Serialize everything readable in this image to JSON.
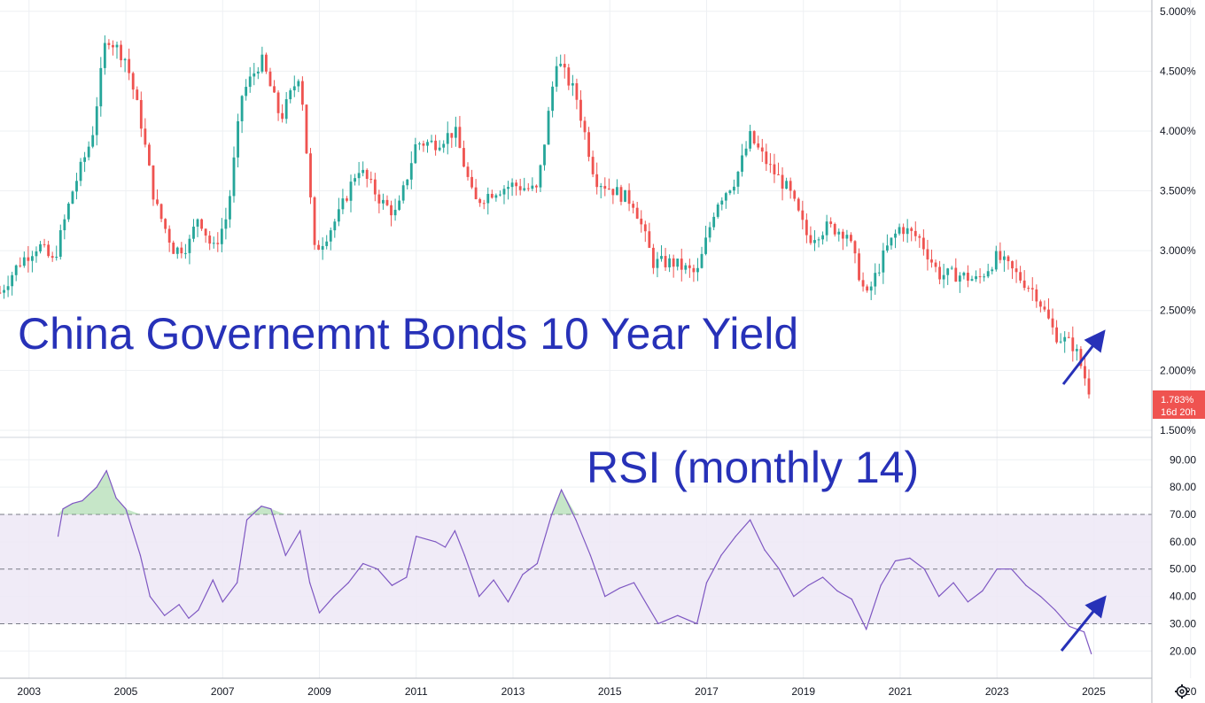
{
  "title": "China Governemnt Bonds 10 Year Yield",
  "rsi_title": "RSI (monthly 14)",
  "colors": {
    "up": "#26a69a",
    "down": "#ef5350",
    "rsi_line": "#7e57c2",
    "rsi_band": "#ede7f6",
    "arrow": "#2731b8",
    "grid": "#eef0f3",
    "last_price_bg": "#ef5350"
  },
  "last_price": {
    "value": "1.783%",
    "countdown": "16d 20h"
  },
  "settings_icon": "gear-icon",
  "chart_data": [
    {
      "type": "candlestick",
      "title": "China Governemnt Bonds 10 Year Yield",
      "x_ticks": [
        "2003",
        "2005",
        "2007",
        "2009",
        "2011",
        "2013",
        "2015",
        "2017",
        "2019",
        "2021",
        "2023",
        "2025",
        "20"
      ],
      "y_ticks": [
        "5.000%",
        "4.500%",
        "4.000%",
        "3.500%",
        "3.000%",
        "2.500%",
        "2.000%",
        "1.500%"
      ],
      "ylim": [
        1.47,
        5.05
      ],
      "xlim": [
        2002.4,
        2026.2
      ],
      "grid": true,
      "anchors": [
        [
          2002.4,
          2.65
        ],
        [
          2002.8,
          2.9
        ],
        [
          2003.2,
          3.05
        ],
        [
          2003.5,
          2.9
        ],
        [
          2003.9,
          3.5
        ],
        [
          2004.3,
          3.95
        ],
        [
          2004.6,
          4.8
        ],
        [
          2005.0,
          4.6
        ],
        [
          2005.3,
          4.1
        ],
        [
          2005.6,
          3.4
        ],
        [
          2006.0,
          3.0
        ],
        [
          2006.3,
          3.05
        ],
        [
          2006.5,
          3.3
        ],
        [
          2006.8,
          3.0
        ],
        [
          2007.1,
          3.3
        ],
        [
          2007.4,
          4.3
        ],
        [
          2007.8,
          4.6
        ],
        [
          2008.2,
          4.1
        ],
        [
          2008.6,
          4.5
        ],
        [
          2008.9,
          3.0
        ],
        [
          2009.1,
          3.1
        ],
        [
          2009.4,
          3.3
        ],
        [
          2009.8,
          3.7
        ],
        [
          2010.3,
          3.4
        ],
        [
          2010.6,
          3.3
        ],
        [
          2011.0,
          3.9
        ],
        [
          2011.4,
          3.9
        ],
        [
          2011.8,
          4.0
        ],
        [
          2012.2,
          3.4
        ],
        [
          2012.6,
          3.5
        ],
        [
          2013.0,
          3.55
        ],
        [
          2013.5,
          3.5
        ],
        [
          2013.9,
          4.6
        ],
        [
          2014.3,
          4.3
        ],
        [
          2014.7,
          3.6
        ],
        [
          2015.1,
          3.5
        ],
        [
          2015.5,
          3.4
        ],
        [
          2015.9,
          2.9
        ],
        [
          2016.3,
          2.9
        ],
        [
          2016.8,
          2.8
        ],
        [
          2017.2,
          3.4
        ],
        [
          2017.6,
          3.6
        ],
        [
          2017.9,
          3.95
        ],
        [
          2018.3,
          3.7
        ],
        [
          2018.7,
          3.5
        ],
        [
          2019.1,
          3.1
        ],
        [
          2019.5,
          3.2
        ],
        [
          2019.9,
          3.15
        ],
        [
          2020.3,
          2.6
        ],
        [
          2020.7,
          3.0
        ],
        [
          2021.0,
          3.2
        ],
        [
          2021.4,
          3.1
        ],
        [
          2021.8,
          2.8
        ],
        [
          2022.2,
          2.8
        ],
        [
          2022.6,
          2.75
        ],
        [
          2023.0,
          2.95
        ],
        [
          2023.4,
          2.8
        ],
        [
          2023.8,
          2.65
        ],
        [
          2024.2,
          2.3
        ],
        [
          2024.6,
          2.2
        ],
        [
          2024.95,
          1.783
        ]
      ],
      "last_value": "1.783%"
    },
    {
      "type": "line",
      "title": "RSI (monthly 14)",
      "y_ticks": [
        "90.00",
        "80.00",
        "70.00",
        "60.00",
        "50.00",
        "40.00",
        "30.00",
        "20.00"
      ],
      "ylim": [
        12,
        93
      ],
      "levels": [
        70,
        50,
        30
      ],
      "band": [
        30,
        70
      ],
      "series": [
        {
          "values": [
            [
              2003.6,
              62
            ],
            [
              2003.7,
              72
            ],
            [
              2003.9,
              74
            ],
            [
              2004.1,
              75
            ],
            [
              2004.4,
              80
            ],
            [
              2004.6,
              86
            ],
            [
              2004.8,
              76
            ],
            [
              2005.0,
              72
            ],
            [
              2005.3,
              55
            ],
            [
              2005.5,
              40
            ],
            [
              2005.8,
              33
            ],
            [
              2006.1,
              37
            ],
            [
              2006.3,
              32
            ],
            [
              2006.5,
              35
            ],
            [
              2006.8,
              46
            ],
            [
              2007.0,
              38
            ],
            [
              2007.3,
              45
            ],
            [
              2007.5,
              68
            ],
            [
              2007.8,
              73
            ],
            [
              2008.0,
              72
            ],
            [
              2008.3,
              55
            ],
            [
              2008.6,
              64
            ],
            [
              2008.8,
              45
            ],
            [
              2009.0,
              34
            ],
            [
              2009.3,
              40
            ],
            [
              2009.6,
              45
            ],
            [
              2009.9,
              52
            ],
            [
              2010.2,
              50
            ],
            [
              2010.5,
              44
            ],
            [
              2010.8,
              47
            ],
            [
              2011.0,
              62
            ],
            [
              2011.4,
              60
            ],
            [
              2011.6,
              58
            ],
            [
              2011.8,
              64
            ],
            [
              2012.0,
              55
            ],
            [
              2012.3,
              40
            ],
            [
              2012.6,
              46
            ],
            [
              2012.9,
              38
            ],
            [
              2013.2,
              48
            ],
            [
              2013.5,
              52
            ],
            [
              2013.8,
              70
            ],
            [
              2014.0,
              79
            ],
            [
              2014.3,
              68
            ],
            [
              2014.6,
              55
            ],
            [
              2014.9,
              40
            ],
            [
              2015.2,
              43
            ],
            [
              2015.5,
              45
            ],
            [
              2015.8,
              36
            ],
            [
              2016.0,
              30
            ],
            [
              2016.4,
              33
            ],
            [
              2016.8,
              30
            ],
            [
              2017.0,
              45
            ],
            [
              2017.3,
              55
            ],
            [
              2017.6,
              62
            ],
            [
              2017.9,
              68
            ],
            [
              2018.2,
              57
            ],
            [
              2018.5,
              50
            ],
            [
              2018.8,
              40
            ],
            [
              2019.1,
              44
            ],
            [
              2019.4,
              47
            ],
            [
              2019.7,
              42
            ],
            [
              2020.0,
              39
            ],
            [
              2020.3,
              28
            ],
            [
              2020.6,
              44
            ],
            [
              2020.9,
              53
            ],
            [
              2021.2,
              54
            ],
            [
              2021.5,
              50
            ],
            [
              2021.8,
              40
            ],
            [
              2022.1,
              45
            ],
            [
              2022.4,
              38
            ],
            [
              2022.7,
              42
            ],
            [
              2023.0,
              50
            ],
            [
              2023.3,
              50
            ],
            [
              2023.6,
              44
            ],
            [
              2023.9,
              40
            ],
            [
              2024.2,
              35
            ],
            [
              2024.5,
              29
            ],
            [
              2024.8,
              27
            ],
            [
              2024.95,
              19
            ]
          ]
        }
      ]
    }
  ]
}
